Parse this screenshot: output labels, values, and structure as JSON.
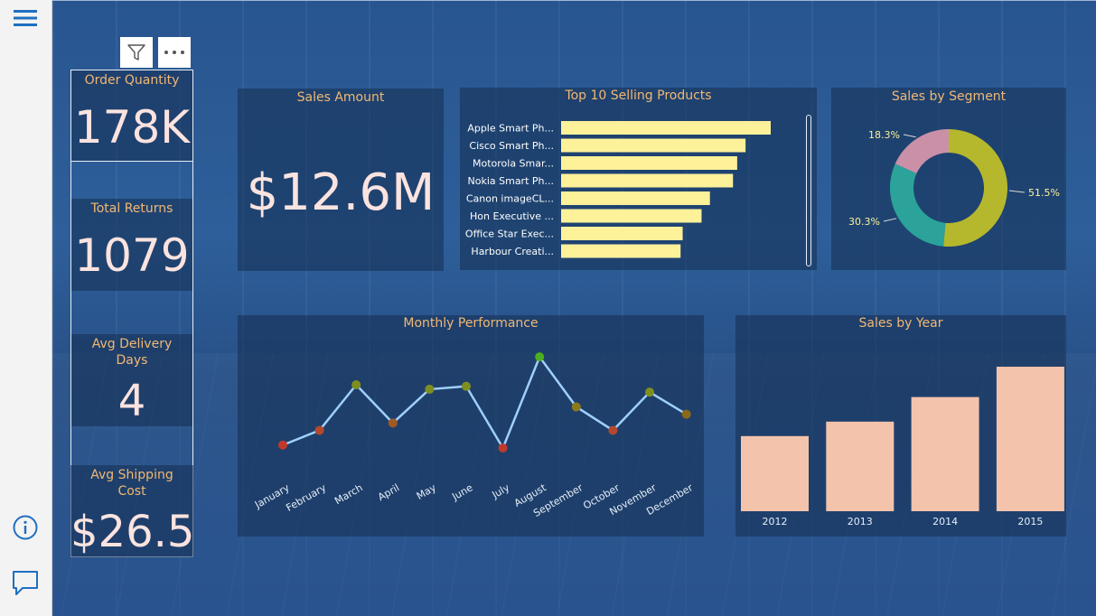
{
  "sidebar": {
    "menu_icon": "hamburger-menu-icon",
    "info_icon": "info-icon",
    "comment_icon": "comment-icon"
  },
  "toolbar": {
    "filter_icon": "filter-icon",
    "more_icon": "more-options-icon"
  },
  "cards": {
    "order_quantity": {
      "label": "Order Quantity",
      "value": "178K"
    },
    "total_returns": {
      "label": "Total Returns",
      "value": "1079"
    },
    "avg_delivery": {
      "label": "Avg Delivery Days",
      "value": "4"
    },
    "avg_shipping": {
      "label": "Avg Shipping Cost",
      "value": "$26.5"
    }
  },
  "sales_amount": {
    "label": "Sales Amount",
    "value": "$12.6M"
  },
  "colors": {
    "accent_title": "#f2b873",
    "bar_yellow": "#fdf19a",
    "line_blue": "#9fd0ff",
    "year_bar": "#f4c3ab",
    "segment_olive": "#b5b82d",
    "segment_teal": "#2ba39b",
    "segment_pink": "#c990a8"
  },
  "charts": {
    "top_products": {
      "title": "Top 10 Selling Products"
    },
    "segment": {
      "title": "Sales by Segment"
    },
    "monthly": {
      "title": "Monthly Performance"
    },
    "yearly": {
      "title": "Sales by Year"
    }
  },
  "chart_data": [
    {
      "type": "bar",
      "orientation": "horizontal",
      "title": "Top 10 Selling Products",
      "categories": [
        "Apple Smart Ph...",
        "Cisco Smart Ph...",
        "Motorola Smar...",
        "Nokia Smart Ph...",
        "Canon imageCL...",
        "Hon Executive ...",
        "Office Star Exec...",
        "Harbour Creati..."
      ],
      "values": [
        100,
        88,
        84,
        82,
        71,
        67,
        58,
        57
      ],
      "value_scale": "relative (no axis shown)"
    },
    {
      "type": "pie",
      "style": "donut",
      "title": "Sales by Segment",
      "values": [
        51.5,
        30.3,
        18.3
      ],
      "labels": [
        "51.5%",
        "30.3%",
        "18.3%"
      ]
    },
    {
      "type": "line",
      "title": "Monthly Performance",
      "categories": [
        "January",
        "February",
        "March",
        "April",
        "May",
        "June",
        "July",
        "August",
        "September",
        "October",
        "November",
        "December"
      ],
      "values": [
        0,
        10,
        41,
        15,
        38,
        40,
        -2,
        60,
        26,
        10,
        36,
        21
      ],
      "value_scale": "relative (no axis shown)",
      "marker_colors": [
        "#c0392b",
        "#b5482c",
        "#7f8f1f",
        "#a25a20",
        "#7f8f1f",
        "#7f8f1f",
        "#c0392b",
        "#4caf1f",
        "#8a7a1a",
        "#b5482c",
        "#7f8f1f",
        "#8a6a1a"
      ]
    },
    {
      "type": "bar",
      "title": "Sales by Year",
      "categories": [
        "2012",
        "2013",
        "2014",
        "2015"
      ],
      "values": [
        52,
        62,
        79,
        100
      ],
      "value_scale": "relative (no axis shown)"
    }
  ]
}
